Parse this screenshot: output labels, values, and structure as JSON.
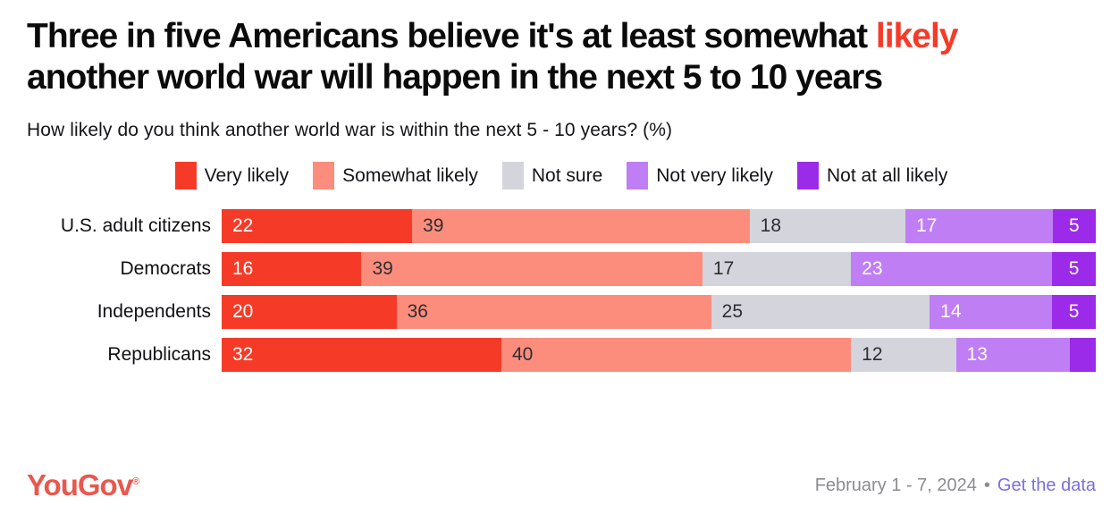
{
  "page": {
    "title_pre": "Three in five Americans believe it's at least somewhat ",
    "title_highlight": "likely",
    "title_post": " another world war will happen in the next 5 to 10 years",
    "subtitle": "How likely do you think another world war is within the next 5 - 10 years? (%)"
  },
  "colors": {
    "title_highlight": "#F53B28",
    "very_likely": "#F53B28",
    "somewhat_likely": "#FC8D7C",
    "not_sure": "#D3D4DC",
    "not_very_likely": "#C07EF5",
    "not_at_all_likely": "#9B2BE8",
    "label_dark": "#2E2D33",
    "label_light": "#FFFFFF",
    "logo": "#E8584E",
    "date_text": "#8C8B90",
    "link": "#7B6FE0"
  },
  "chart_data": {
    "type": "bar",
    "variant": "horizontal-stacked",
    "unit": "%",
    "title": "How likely do you think another world war is within the next 5 - 10 years? (%)",
    "categories": [
      "U.S. adult citizens",
      "Democrats",
      "Independents",
      "Republicans"
    ],
    "series": [
      {
        "name": "Very likely",
        "color": "#F53B28",
        "text_color": "#FFFFFF",
        "values": [
          22,
          16,
          20,
          32
        ]
      },
      {
        "name": "Somewhat likely",
        "color": "#FC8D7C",
        "text_color": "#2E2D33",
        "values": [
          39,
          39,
          36,
          40
        ]
      },
      {
        "name": "Not sure",
        "color": "#D3D4DC",
        "text_color": "#2E2D33",
        "values": [
          18,
          17,
          25,
          12
        ]
      },
      {
        "name": "Not very likely",
        "color": "#C07EF5",
        "text_color": "#FFFFFF",
        "values": [
          17,
          23,
          14,
          13
        ]
      },
      {
        "name": "Not at all likely",
        "color": "#9B2BE8",
        "text_color": "#FFFFFF",
        "values": [
          5,
          5,
          5,
          3
        ]
      }
    ],
    "hidden_labels": [
      {
        "series": "Not at all likely",
        "category": "Republicans"
      }
    ],
    "small_label_threshold": 6,
    "legend_position": "top-center",
    "xlim": [
      0,
      100
    ],
    "grid": false
  },
  "footer": {
    "logo_text": "YouGov",
    "logo_reg_mark": "®",
    "date_range": "February 1 - 7, 2024",
    "separator": "•",
    "link_label": "Get the data"
  }
}
